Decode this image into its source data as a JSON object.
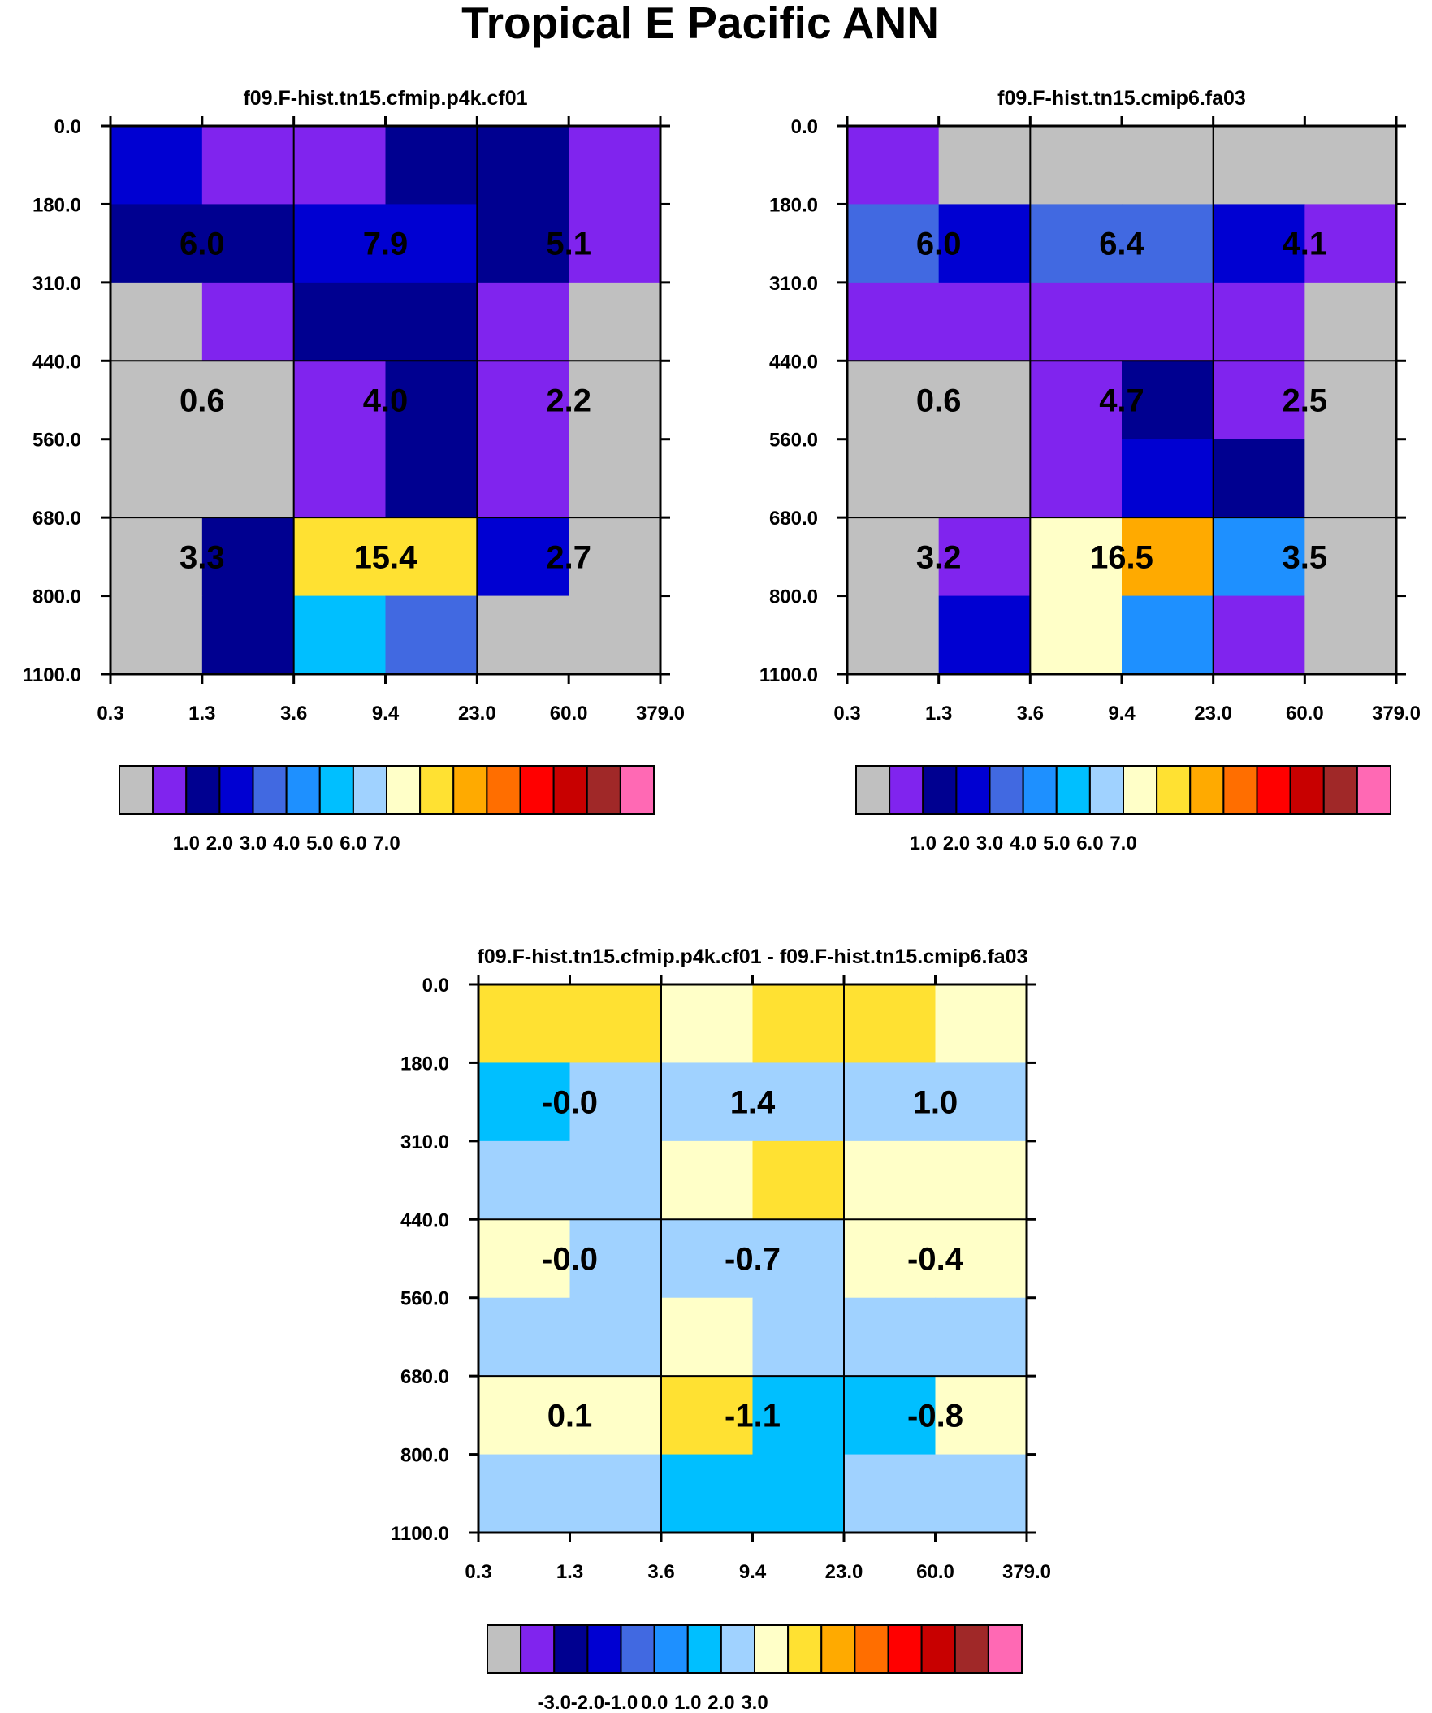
{
  "chart_data": {
    "type": "heatmap",
    "title": "Tropical E Pacific ANN",
    "y_ticks": [
      "0.0",
      "180.0",
      "310.0",
      "440.0",
      "560.0",
      "680.0",
      "800.0",
      "1100.0"
    ],
    "x_ticks": [
      "0.3",
      "1.3",
      "3.6",
      "9.4",
      "23.0",
      "60.0",
      "379.0"
    ],
    "palette": [
      "#c0c0c0",
      "#8024ee",
      "#000090",
      "#0000d2",
      "#4169e1",
      "#1e90ff",
      "#00bfff",
      "#a0d2ff",
      "#ffffc8",
      "#ffe132",
      "#ffaa00",
      "#ff6e00",
      "#ff0000",
      "#c80000",
      "#a02828",
      "#ff69b4"
    ],
    "panels": [
      {
        "title": "f09.F-hist.tn15.cfmip.p4k.cf01",
        "cells": [
          [
            3,
            1,
            1,
            2,
            2,
            1
          ],
          [
            2,
            2,
            3,
            3,
            2,
            1
          ],
          [
            0,
            1,
            2,
            2,
            1,
            0
          ],
          [
            0,
            0,
            1,
            2,
            1,
            0
          ],
          [
            0,
            0,
            1,
            2,
            1,
            0
          ],
          [
            0,
            2,
            9,
            9,
            3,
            0
          ],
          [
            0,
            2,
            6,
            4,
            0,
            0
          ]
        ],
        "annotations": [
          [
            "6.0",
            "7.9",
            "5.1"
          ],
          [
            "0.6",
            "4.0",
            "2.2"
          ],
          [
            "3.3",
            "15.4",
            "2.7"
          ]
        ],
        "colorbar_labels": [
          "1.0",
          "2.0",
          "3.0",
          "4.0",
          "5.0",
          "6.0",
          "7.0"
        ]
      },
      {
        "title": "f09.F-hist.tn15.cmip6.fa03",
        "cells": [
          [
            1,
            0,
            0,
            0,
            0,
            0
          ],
          [
            4,
            3,
            4,
            4,
            3,
            1
          ],
          [
            1,
            1,
            1,
            1,
            1,
            0
          ],
          [
            0,
            0,
            1,
            2,
            1,
            0
          ],
          [
            0,
            0,
            1,
            3,
            2,
            0
          ],
          [
            0,
            1,
            8,
            10,
            5,
            0
          ],
          [
            0,
            3,
            8,
            5,
            1,
            0
          ]
        ],
        "annotations": [
          [
            "6.0",
            "6.4",
            "4.1"
          ],
          [
            "0.6",
            "4.7",
            "2.5"
          ],
          [
            "3.2",
            "16.5",
            "3.5"
          ]
        ],
        "colorbar_labels": [
          "1.0",
          "2.0",
          "3.0",
          "4.0",
          "5.0",
          "6.0",
          "7.0"
        ]
      },
      {
        "title": "f09.F-hist.tn15.cfmip.p4k.cf01 - f09.F-hist.tn15.cmip6.fa03",
        "cells": [
          [
            9,
            9,
            8,
            9,
            9,
            8
          ],
          [
            6,
            7,
            7,
            7,
            7,
            7
          ],
          [
            7,
            7,
            8,
            9,
            8,
            8
          ],
          [
            8,
            7,
            7,
            7,
            8,
            8
          ],
          [
            7,
            7,
            8,
            7,
            7,
            7
          ],
          [
            8,
            8,
            9,
            6,
            6,
            8
          ],
          [
            7,
            7,
            6,
            6,
            7,
            7
          ]
        ],
        "annotations": [
          [
            "-0.0",
            "1.4",
            "1.0"
          ],
          [
            "-0.0",
            "-0.7",
            "-0.4"
          ],
          [
            "0.1",
            "-1.1",
            "-0.8"
          ]
        ],
        "colorbar_labels": [
          "-3.0",
          "-2.0",
          "-1.0",
          "0.0",
          "1.0",
          "2.0",
          "3.0"
        ]
      }
    ]
  }
}
